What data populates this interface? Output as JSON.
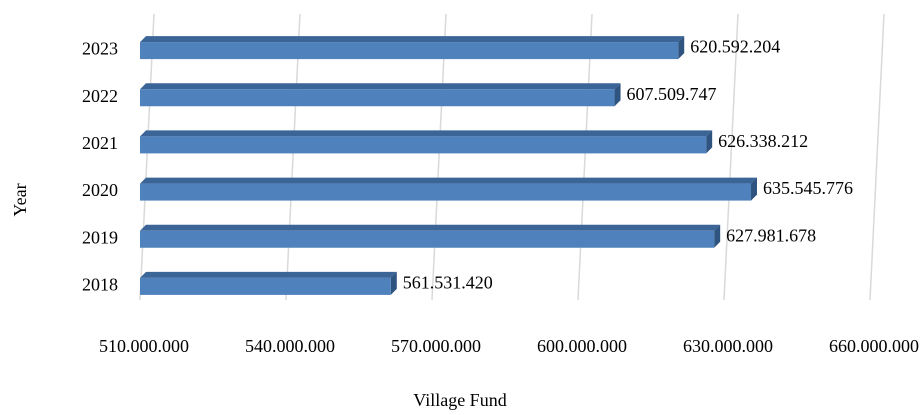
{
  "chart_data": {
    "type": "bar",
    "orientation": "horizontal",
    "xlabel": "Village Fund",
    "ylabel": "Year",
    "categories": [
      "2018",
      "2019",
      "2020",
      "2021",
      "2022",
      "2023"
    ],
    "values": [
      561531420,
      627981678,
      635545776,
      626338212,
      607509747,
      620592204
    ],
    "value_labels": [
      "561.531.420",
      "627.981.678",
      "635.545.776",
      "626.338.212",
      "607.509.747",
      "620.592.204"
    ],
    "color": "#4f81bd",
    "xlim": [
      510000000,
      660000000
    ],
    "xticks": [
      {
        "value": 510000000,
        "label": "510.000.000"
      },
      {
        "value": 540000000,
        "label": "540.000.000"
      },
      {
        "value": 570000000,
        "label": "570.000.000"
      },
      {
        "value": 600000000,
        "label": "600.000.000"
      },
      {
        "value": 630000000,
        "label": "630.000.000"
      },
      {
        "value": 660000000,
        "label": "660.000.000"
      }
    ],
    "grid": true
  }
}
